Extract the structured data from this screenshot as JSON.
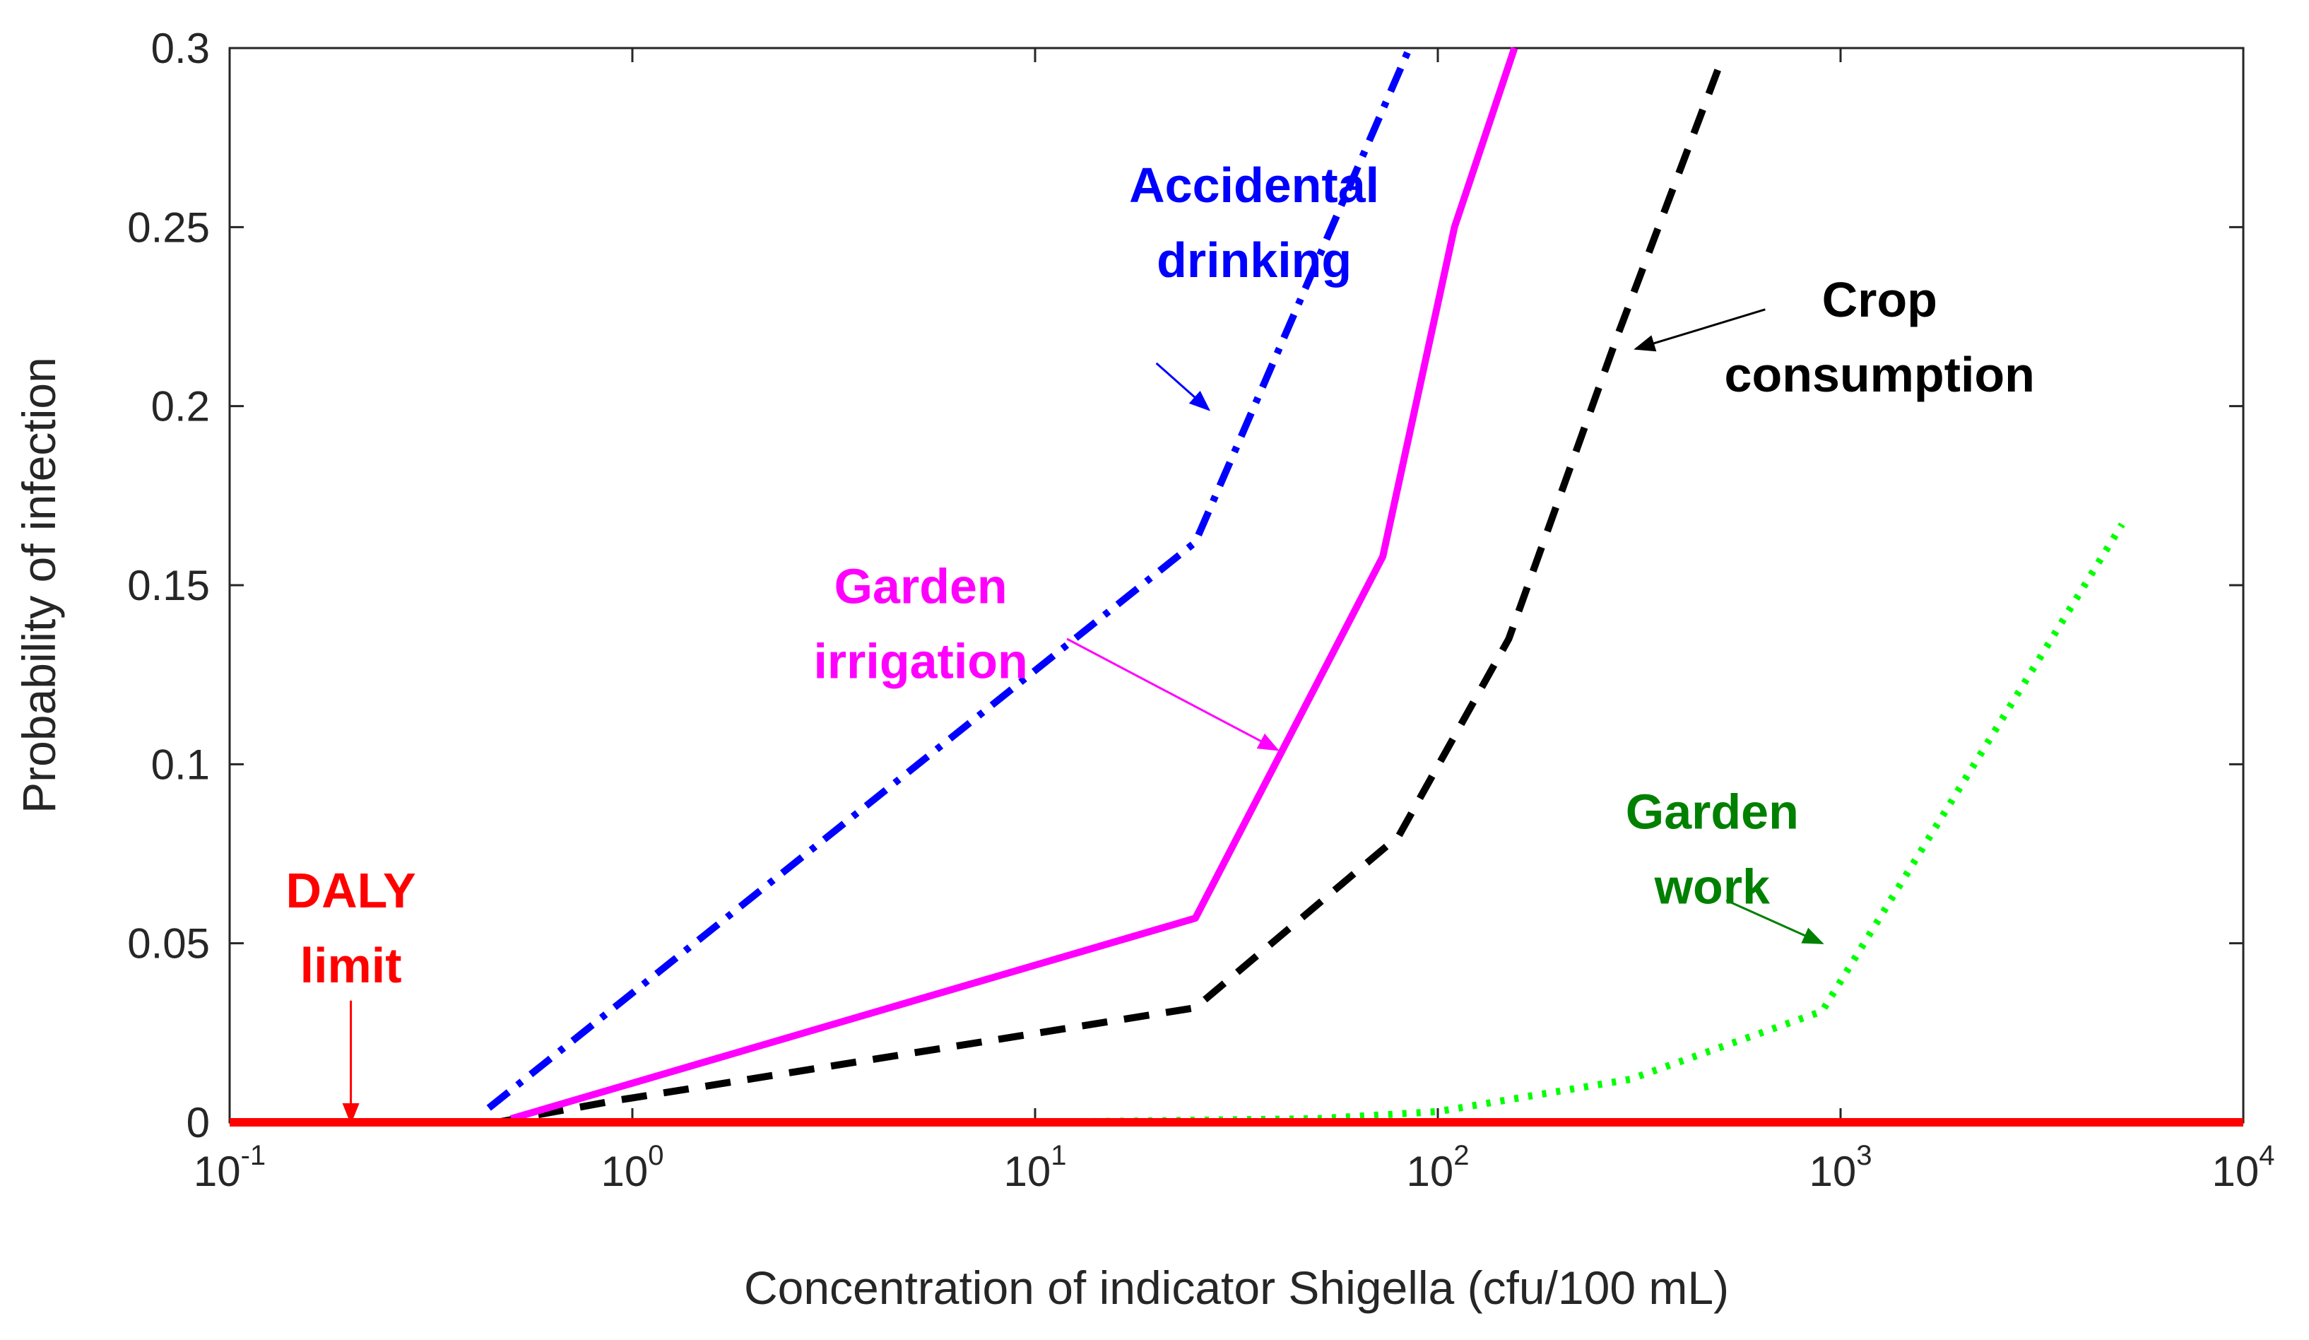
{
  "chart_data": {
    "type": "line",
    "title": "",
    "xlabel": "Concentration of indicator Shigella (cfu/100 mL)",
    "ylabel": "Probability of infection",
    "xscale": "log",
    "xlim": [
      0.1,
      10000
    ],
    "ylim": [
      0,
      0.3
    ],
    "grid": false,
    "legend": "none",
    "x_ticks": [
      {
        "base": "10",
        "exp": "-1",
        "value": 0.1
      },
      {
        "base": "10",
        "exp": "0",
        "value": 1
      },
      {
        "base": "10",
        "exp": "1",
        "value": 10
      },
      {
        "base": "10",
        "exp": "2",
        "value": 100
      },
      {
        "base": "10",
        "exp": "3",
        "value": 1000
      },
      {
        "base": "10",
        "exp": "4",
        "value": 10000
      }
    ],
    "y_ticks": [
      {
        "label": "0",
        "value": 0
      },
      {
        "label": "0.05",
        "value": 0.05
      },
      {
        "label": "0.1",
        "value": 0.1
      },
      {
        "label": "0.15",
        "value": 0.15
      },
      {
        "label": "0.2",
        "value": 0.2
      },
      {
        "label": "0.25",
        "value": 0.25
      },
      {
        "label": "0.3",
        "value": 0.3
      }
    ],
    "series": [
      {
        "id": "accidental-drinking",
        "color": "#0000ff",
        "style": "dashdot",
        "points": [
          [
            0.44,
            0.004
          ],
          [
            25,
            0.162
          ],
          [
            85,
            0.3
          ]
        ]
      },
      {
        "id": "garden-irrigation",
        "color": "#ff00ff",
        "style": "solid",
        "points": [
          [
            0.5,
            0.001
          ],
          [
            25,
            0.057
          ],
          [
            73,
            0.158
          ],
          [
            110,
            0.25
          ],
          [
            155,
            0.3
          ]
        ]
      },
      {
        "id": "crop-consumption",
        "color": "#000000",
        "style": "dashed",
        "points": [
          [
            0.46,
            0.0
          ],
          [
            0.9,
            0.006
          ],
          [
            25,
            0.032
          ],
          [
            80,
            0.08
          ],
          [
            150,
            0.135
          ],
          [
            280,
            0.22
          ],
          [
            500,
            0.295
          ]
        ]
      },
      {
        "id": "garden-work",
        "color": "#00ff00",
        "style": "dotted",
        "points": [
          [
            10,
            0.0
          ],
          [
            50,
            0.001
          ],
          [
            100,
            0.003
          ],
          [
            300,
            0.012
          ],
          [
            900,
            0.031
          ],
          [
            5000,
            0.167
          ]
        ]
      },
      {
        "id": "daly-limit",
        "color": "#ff0000",
        "style": "solid",
        "points": [
          [
            0.1,
            0.0
          ],
          [
            10000,
            0.0
          ]
        ]
      }
    ],
    "annotations": [
      {
        "id": "accidental-drinking",
        "lines": [
          "Accidental",
          "drinking"
        ],
        "color": "#0000ff",
        "text_at": [
          35,
          0.257
        ],
        "arrow_from": [
          20,
          0.212
        ],
        "arrow_to": [
          27,
          0.199
        ]
      },
      {
        "id": "garden-irrigation",
        "lines": [
          "Garden",
          "irrigation"
        ],
        "color": "#ff00ff",
        "text_at": [
          5.2,
          0.145
        ],
        "arrow_from": [
          12,
          0.135
        ],
        "arrow_to": [
          40,
          0.104
        ]
      },
      {
        "id": "crop-consumption",
        "lines": [
          "Crop",
          "consumption"
        ],
        "color": "#000000",
        "text_at": [
          1250,
          0.225
        ],
        "arrow_from": [
          650,
          0.227
        ],
        "arrow_to": [
          310,
          0.216
        ]
      },
      {
        "id": "garden-work",
        "lines": [
          "Garden",
          "work"
        ],
        "color": "#008000",
        "text_at": [
          480,
          0.082
        ],
        "arrow_from": [
          520,
          0.062
        ],
        "arrow_to": [
          900,
          0.05
        ]
      },
      {
        "id": "daly-limit",
        "lines": [
          "DALY",
          "limit"
        ],
        "color": "#ff0000",
        "text_at": [
          0.2,
          0.06
        ],
        "arrow_from": [
          0.2,
          0.034
        ],
        "arrow_to": [
          0.2,
          0.0
        ]
      }
    ]
  }
}
